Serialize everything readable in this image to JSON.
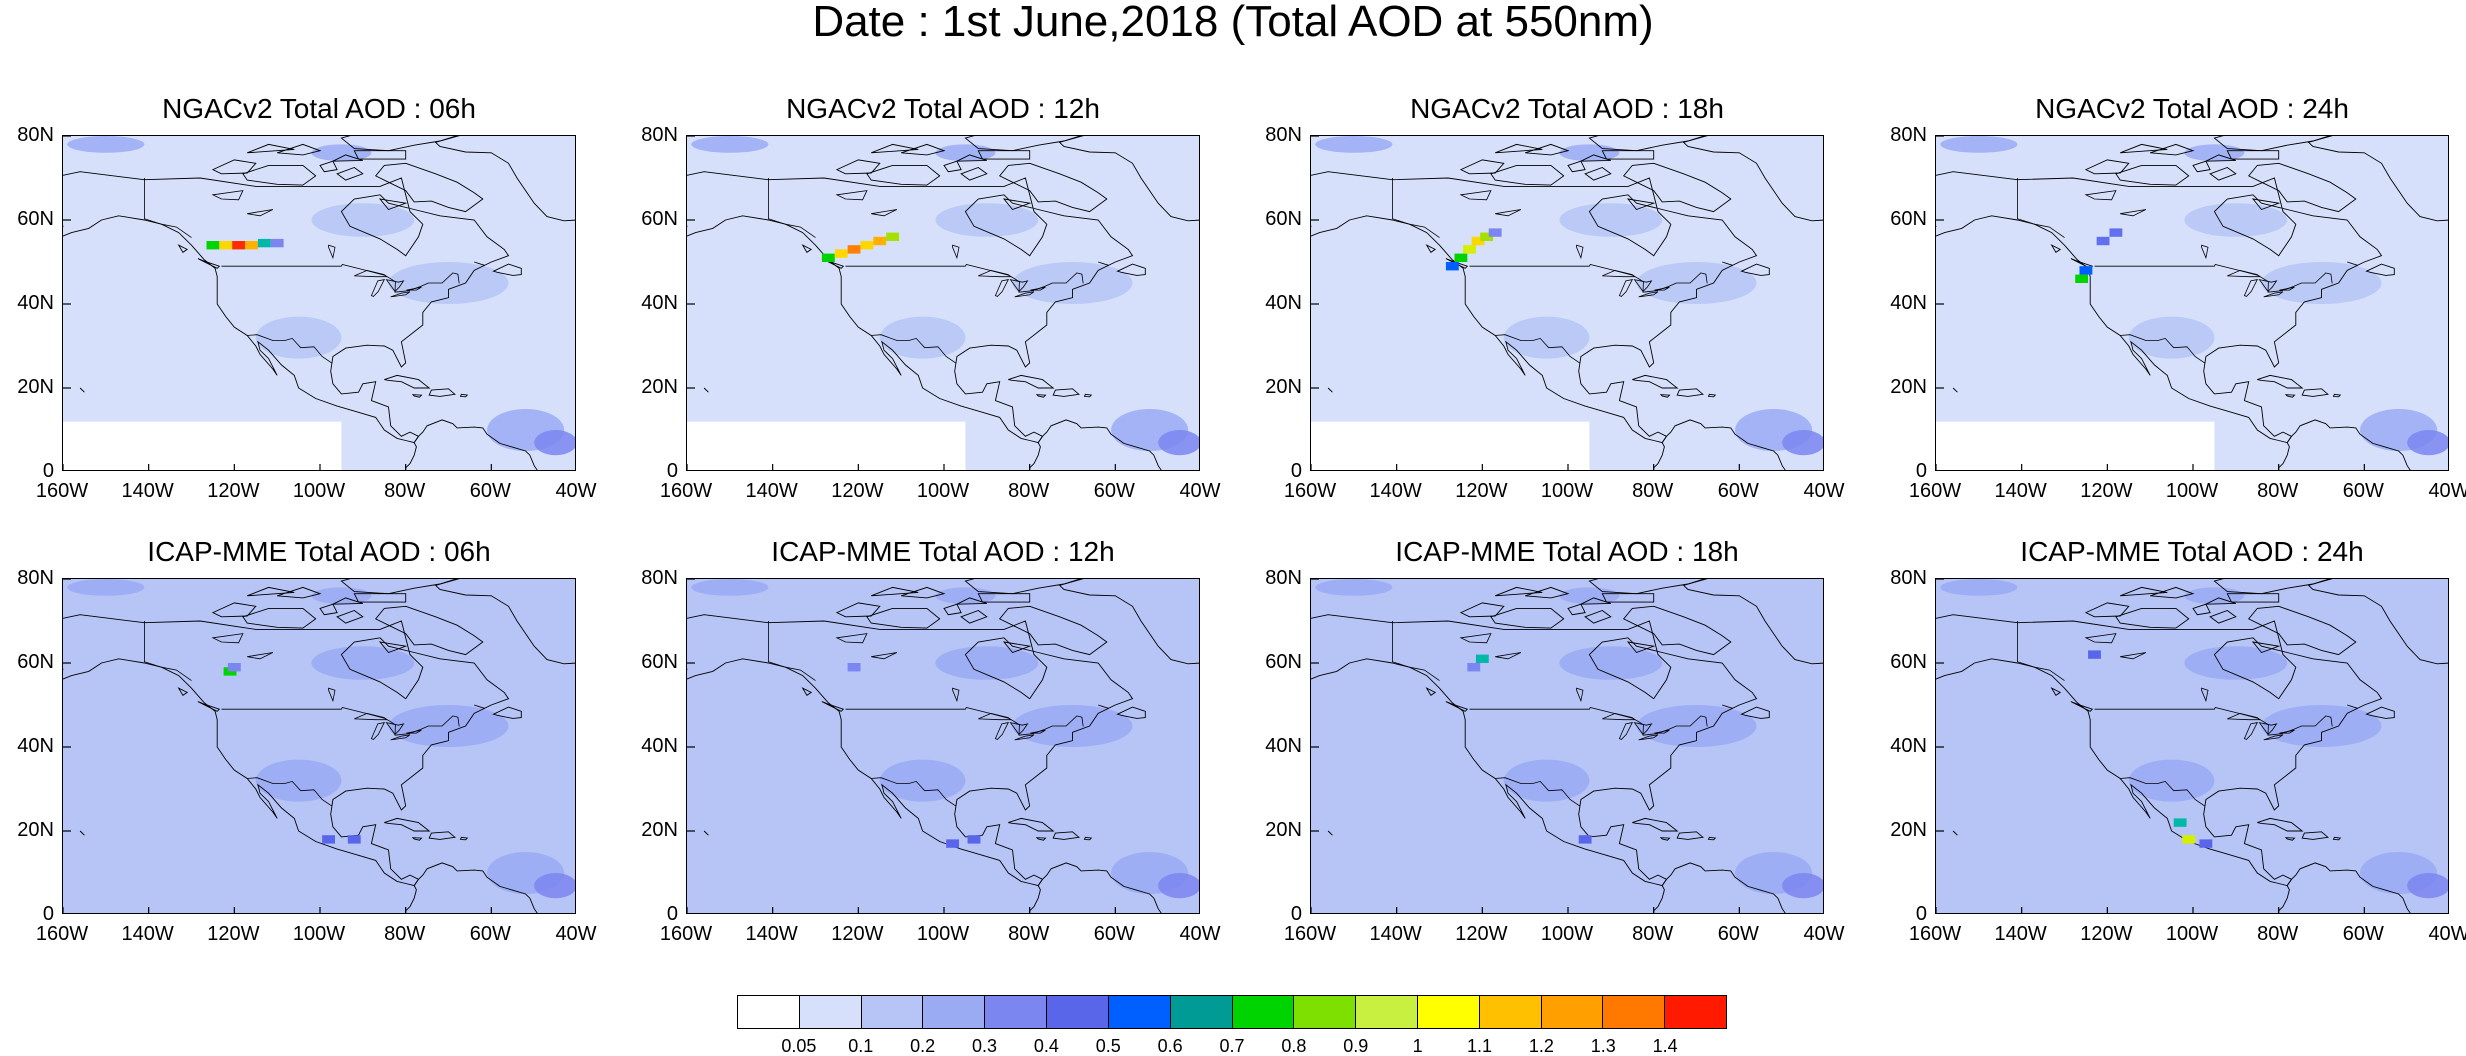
{
  "figure": {
    "title": "Date : 1st June,2018 (Total AOD at 550nm)"
  },
  "panels": [
    {
      "title": "NGACv2 Total AOD : 06h",
      "model": "NGACv2",
      "hour": "06h",
      "plume": [
        [
          -125,
          54,
          "#00d400"
        ],
        [
          -122,
          54,
          "#ffd700"
        ],
        [
          -119,
          54,
          "#ff2a00"
        ],
        [
          -116,
          54,
          "#ffb000"
        ],
        [
          -113,
          54.5,
          "#00b8a8"
        ],
        [
          -110,
          54.5,
          "#7b86f0"
        ]
      ]
    },
    {
      "title": "NGACv2 Total AOD : 12h",
      "model": "NGACv2",
      "hour": "12h",
      "plume": [
        [
          -127,
          51,
          "#00d400"
        ],
        [
          -124,
          52,
          "#ffd700"
        ],
        [
          -121,
          53,
          "#ff8000"
        ],
        [
          -118,
          54,
          "#ffd700"
        ],
        [
          -115,
          55,
          "#ffb000"
        ],
        [
          -112,
          56,
          "#a6e000"
        ]
      ]
    },
    {
      "title": "NGACv2 Total AOD : 18h",
      "model": "NGACv2",
      "hour": "18h",
      "plume": [
        [
          -127,
          49,
          "#0060ff"
        ],
        [
          -125,
          51,
          "#00d400"
        ],
        [
          -123,
          53,
          "#d4f000"
        ],
        [
          -121,
          55,
          "#ffd700"
        ],
        [
          -119,
          56,
          "#a6e000"
        ],
        [
          -117,
          57,
          "#7b86f0"
        ]
      ]
    },
    {
      "title": "NGACv2 Total AOD : 24h",
      "model": "NGACv2",
      "hour": "24h",
      "plume": [
        [
          -126,
          46,
          "#00d400"
        ],
        [
          -125,
          48,
          "#0060ff"
        ],
        [
          -121,
          55,
          "#6070ee"
        ],
        [
          -118,
          57,
          "#6070ee"
        ]
      ]
    },
    {
      "title": "ICAP-MME Total AOD : 06h",
      "model": "ICAP-MME",
      "hour": "06h",
      "plume": [
        [
          -121,
          58,
          "#00d400"
        ],
        [
          -120,
          59,
          "#7b86f0"
        ],
        [
          -98,
          18,
          "#5a66ea"
        ],
        [
          -92,
          18,
          "#5a66ea"
        ]
      ]
    },
    {
      "title": "ICAP-MME Total AOD : 12h",
      "model": "ICAP-MME",
      "hour": "12h",
      "plume": [
        [
          -121,
          59,
          "#7b86f0"
        ],
        [
          -98,
          17,
          "#5a66ea"
        ],
        [
          -93,
          18,
          "#5a66ea"
        ]
      ]
    },
    {
      "title": "ICAP-MME Total AOD : 18h",
      "model": "ICAP-MME",
      "hour": "18h",
      "plume": [
        [
          -120,
          61,
          "#00b8a8"
        ],
        [
          -122,
          59,
          "#7b86f0"
        ],
        [
          -96,
          18,
          "#5a66ea"
        ]
      ]
    },
    {
      "title": "ICAP-MME Total AOD : 24h",
      "model": "ICAP-MME",
      "hour": "24h",
      "plume": [
        [
          -123,
          62,
          "#5a66ea"
        ],
        [
          -101,
          18,
          "#d4f000"
        ],
        [
          -103,
          22,
          "#00b8a8"
        ],
        [
          -97,
          17,
          "#5a66ea"
        ]
      ]
    }
  ],
  "axes": {
    "lat_ticks": [
      "80N",
      "60N",
      "40N",
      "20N",
      "0"
    ],
    "lon_ticks": [
      "160W",
      "140W",
      "120W",
      "100W",
      "80W",
      "60W",
      "40W"
    ],
    "lat_range": [
      0,
      80
    ],
    "lon_range": [
      -160,
      -40
    ]
  },
  "colorbar": {
    "labels": [
      "0.05",
      "0.1",
      "0.2",
      "0.3",
      "0.4",
      "0.5",
      "0.6",
      "0.7",
      "0.8",
      "0.9",
      "1",
      "1.1",
      "1.2",
      "1.3",
      "1.4"
    ],
    "colors": [
      "#ffffff",
      "#d6e0fb",
      "#b6c4f6",
      "#9aaaf3",
      "#7b86f0",
      "#5a66ea",
      "#0060ff",
      "#009b95",
      "#00d400",
      "#7de000",
      "#c8f040",
      "#ffff00",
      "#ffc000",
      "#ffa000",
      "#ff7800",
      "#ff1a00"
    ]
  }
}
